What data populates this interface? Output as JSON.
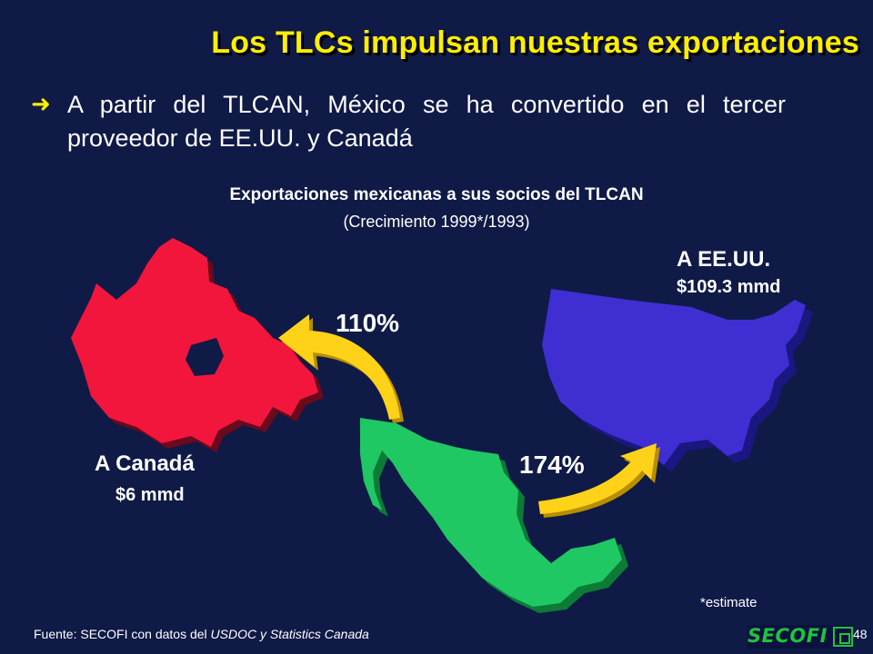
{
  "slide": {
    "title": "Los TLCs impulsan nuestras exportaciones",
    "bullet_icon": "arrow-right-icon",
    "bullet_text": "A partir del TLCAN, México se ha convertido en el tercer proveedor de EE.UU. y Canadá",
    "chart_title": "Exportaciones mexicanas a sus socios del TLCAN",
    "chart_subtitle": "(Crecimiento 1999*/1993)",
    "destinations": {
      "usa": {
        "name": "A EE.UU.",
        "value": "$109.3 mmd",
        "growth": "174%"
      },
      "canada": {
        "name": "A Canadá",
        "value": "$6 mmd",
        "growth": "110%"
      }
    },
    "note": "*estimate",
    "source_prefix": "Fuente: SECOFI con datos del ",
    "source_italic": "USDOC y Statistics Canada",
    "page_number": "48",
    "logo_text": "SECOFI"
  },
  "colors": {
    "background": "#0f1a47",
    "title": "#ffee00",
    "canada": "#f2163c",
    "usa": "#3f2ed2",
    "mexico": "#1fc862",
    "arrow": "#ffd21a"
  }
}
